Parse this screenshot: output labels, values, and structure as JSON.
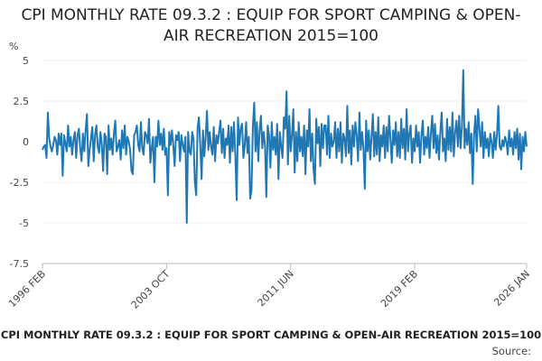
{
  "chart_data": {
    "type": "line",
    "title": "CPI MONTHLY RATE 09.3.2 : EQUIP FOR SPORT CAMPING & OPEN-AIR RECREATION 2015=100",
    "y_label": "%",
    "source": "Source:",
    "color": "#1f78b4",
    "grid": true,
    "ylim": [
      -7.5,
      5
    ],
    "yticks": [
      -7.5,
      -5,
      -2.5,
      0,
      2.5,
      5
    ],
    "categories": [
      "1996 FEB",
      null,
      null,
      null,
      null,
      null,
      null,
      null,
      null,
      null,
      null,
      null,
      null,
      null,
      null,
      null,
      null,
      null,
      null,
      null,
      null,
      null,
      null,
      null,
      null,
      null,
      null,
      null,
      null,
      null,
      null,
      null,
      null,
      null,
      null,
      null,
      null,
      null,
      null,
      null,
      null,
      null,
      null,
      null,
      null,
      null,
      null,
      null,
      null,
      null,
      null,
      null,
      null,
      null,
      null,
      null,
      null,
      null,
      null,
      null,
      null,
      null,
      null,
      null,
      null,
      null,
      null,
      null,
      null,
      null,
      null,
      null,
      null,
      null,
      null,
      null,
      null,
      null,
      null,
      null,
      null,
      null,
      null,
      null,
      null,
      null,
      null,
      null,
      null,
      null,
      null,
      null,
      "2003 OCT",
      null,
      null,
      null,
      null,
      null,
      null,
      null,
      null,
      null,
      null,
      null,
      null,
      null,
      null,
      null,
      null,
      null,
      null,
      null,
      null,
      null,
      null,
      null,
      null,
      null,
      null,
      null,
      null,
      null,
      null,
      null,
      null,
      null,
      null,
      null,
      null,
      null,
      null,
      null,
      null,
      null,
      null,
      null,
      null,
      null,
      null,
      null,
      null,
      null,
      null,
      null,
      null,
      null,
      null,
      null,
      null,
      null,
      null,
      null,
      null,
      null,
      null,
      null,
      null,
      null,
      null,
      null,
      null,
      null,
      null,
      null,
      null,
      null,
      null,
      null,
      null,
      null,
      null,
      null,
      null,
      null,
      null,
      null,
      null,
      null,
      null,
      null,
      null,
      null,
      null,
      null,
      "2011 JUN",
      null,
      null,
      null,
      null,
      null,
      null,
      null,
      null,
      null,
      null,
      null,
      null,
      null,
      null,
      null,
      null,
      null,
      null,
      null,
      null,
      null,
      null,
      null,
      null,
      null,
      null,
      null,
      null,
      null,
      null,
      null,
      null,
      null,
      null,
      null,
      null,
      null,
      null,
      null,
      null,
      null,
      null,
      null,
      null,
      null,
      null,
      null,
      null,
      null,
      null,
      null,
      null,
      null,
      null,
      null,
      null,
      null,
      null,
      null,
      null,
      null,
      null,
      null,
      null,
      null,
      null,
      null,
      null,
      null,
      null,
      null,
      null,
      null,
      null,
      null,
      null,
      null,
      null,
      null,
      null,
      null,
      null,
      null,
      null,
      null,
      null,
      null,
      null,
      null,
      null,
      null,
      "2019 FEB",
      null,
      null,
      null,
      null,
      null,
      null,
      null,
      null,
      null,
      null,
      null,
      null,
      null,
      null,
      null,
      null,
      null,
      null,
      null,
      null,
      null,
      null,
      null,
      null,
      null,
      null,
      null,
      null,
      null,
      null,
      null,
      null,
      null,
      null,
      null,
      null,
      null,
      null,
      null,
      null,
      null,
      null,
      null,
      null,
      null,
      null,
      null,
      null,
      null,
      null,
      null,
      null,
      null,
      null,
      null,
      null,
      null,
      null,
      null,
      null,
      null,
      null,
      null,
      null,
      null,
      null,
      null,
      null,
      null,
      null,
      null,
      null,
      null,
      null,
      null,
      null,
      null,
      null,
      null,
      null,
      null,
      null,
      "2026 JAN"
    ],
    "values": [
      -0.5,
      -0.3,
      -0.2,
      -1.0,
      1.8,
      0.2,
      -0.3,
      -0.6,
      -0.2,
      0.3,
      0.1,
      -0.8,
      0.5,
      -0.2,
      0.5,
      -2.1,
      0.4,
      -0.1,
      -0.6,
      1.0,
      -0.3,
      0.3,
      -0.8,
      0.1,
      0.6,
      -1.0,
      0.4,
      0.8,
      -0.4,
      -1.2,
      0.5,
      -0.6,
      0.7,
      1.7,
      -1.5,
      -0.5,
      0.2,
      0.9,
      -1.2,
      0.4,
      1.0,
      -0.3,
      -0.7,
      0.6,
      -0.2,
      -1.8,
      0.5,
      0.3,
      -2.0,
      1.0,
      -0.5,
      0.2,
      -0.8,
      0.5,
      1.3,
      -0.6,
      -0.3,
      0.1,
      -1.1,
      0.7,
      -0.4,
      1.0,
      -0.8,
      0.3,
      0.0,
      -0.5,
      -1.8,
      -2.0,
      0.4,
      0.6,
      1.0,
      -0.2,
      -0.6,
      1.2,
      -0.4,
      -0.8,
      0.6,
      0.4,
      -0.1,
      1.4,
      -1.3,
      -0.4,
      0.3,
      -2.5,
      0.3,
      -0.3,
      1.3,
      -0.2,
      0.5,
      -0.5,
      0.8,
      -0.8,
      -0.4,
      -3.3,
      0.6,
      -0.2,
      0.7,
      -0.2,
      -1.5,
      0.4,
      0.1,
      0.6,
      -1.2,
      0.4,
      -0.2,
      -0.6,
      0.3,
      -5.0,
      0.6,
      -0.6,
      -0.8,
      0.6,
      0.2,
      -2.5,
      -3.3,
      0.8,
      1.5,
      -0.2,
      -2.3,
      0.7,
      -0.9,
      0.3,
      1.9,
      -0.5,
      0.6,
      -0.3,
      -0.8,
      0.9,
      -1.2,
      0.4,
      -0.1,
      0.6,
      1.3,
      -0.7,
      0.8,
      -1.0,
      0.2,
      -0.2,
      1.0,
      -1.3,
      0.9,
      -0.6,
      1.2,
      -0.8,
      -3.6,
      1.5,
      -0.2,
      0.8,
      1.1,
      -1.0,
      -0.2,
      1.2,
      -0.7,
      0.3,
      -3.5,
      -3.0,
      0.9,
      2.4,
      -0.6,
      1.2,
      -1.2,
      0.7,
      1.6,
      -0.4,
      0.6,
      -0.2,
      -3.4,
      1.0,
      0.4,
      -1.6,
      1.2,
      -0.5,
      0.3,
      -0.8,
      1.1,
      -2.3,
      0.6,
      -0.3,
      -1.0,
      1.5,
      0.8,
      3.1,
      -1.4,
      1.6,
      -0.6,
      0.4,
      2.0,
      -1.9,
      0.6,
      -1.2,
      1.2,
      -0.6,
      0.3,
      -0.9,
      1.0,
      -2.0,
      0.7,
      -0.3,
      2.0,
      -1.2,
      0.5,
      -1.7,
      -2.6,
      1.4,
      -0.1,
      0.9,
      -1.5,
      1.1,
      -0.4,
      1.0,
      1.0,
      -0.8,
      1.6,
      -1.0,
      0.5,
      -0.3,
      0.0,
      1.2,
      -1.0,
      0.8,
      -0.6,
      1.2,
      -1.3,
      0.5,
      0.2,
      -0.9,
      2.2,
      -0.7,
      0.7,
      -1.4,
      1.0,
      -0.3,
      1.2,
      0.4,
      -1.2,
      1.8,
      -0.5,
      0.6,
      -0.4,
      -2.9,
      1.3,
      -0.6,
      0.7,
      -1.1,
      0.3,
      1.7,
      -0.9,
      0.6,
      -0.8,
      1.5,
      -1.2,
      0.4,
      -0.3,
      1.0,
      -1.0,
      0.9,
      -0.6,
      1.6,
      0.2,
      -1.3,
      0.7,
      -0.2,
      1.2,
      -0.9,
      0.6,
      -1.0,
      1.4,
      -0.4,
      0.8,
      -1.1,
      2.0,
      -0.6,
      0.5,
      1.0,
      -1.3,
      0.2,
      -0.6,
      1.0,
      -0.3,
      0.6,
      -1.3,
      0.4,
      1.3,
      -0.8,
      0.3,
      -0.4,
      0.9,
      -1.0,
      0.5,
      1.6,
      -0.4,
      1.1,
      -0.7,
      0.4,
      -1.1,
      0.6,
      1.8,
      -0.6,
      0.2,
      -1.2,
      1.4,
      -0.5,
      0.9,
      -0.6,
      1.8,
      -0.9,
      0.6,
      1.3,
      -0.3,
      1.6,
      -0.4,
      0.9,
      4.4,
      -0.4,
      0.8,
      -0.2,
      1.2,
      -0.7,
      0.5,
      -2.6,
      0.4,
      1.6,
      -0.6,
      2.0,
      0.8,
      -0.3,
      1.2,
      -1.0,
      0.6,
      -0.4,
      0.2,
      -0.9,
      0.5,
      0.0,
      -1.0,
      0.6,
      -0.5,
      0.4,
      2.2,
      -0.3,
      -0.5,
      0.1,
      -0.3,
      0.3,
      0.0,
      -0.8,
      0.7,
      -0.3,
      0.2,
      -0.8,
      0.6,
      -0.4,
      0.8,
      -1.1,
      0.5,
      -1.7,
      0.3,
      -0.6,
      0.6,
      -0.3
    ]
  }
}
